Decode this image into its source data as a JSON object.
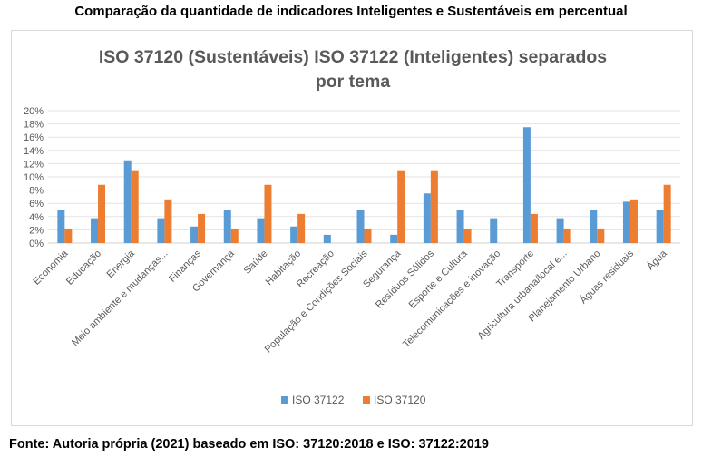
{
  "caption": "Comparação da quantidade de indicadores Inteligentes e Sustentáveis em percentual",
  "source": "Fonte: Autoria própria (2021) baseado em ISO: 37120:2018 e ISO: 37122:2019",
  "chart_data": {
    "type": "bar",
    "title_line1": "ISO 37120 (Sustentáveis) ISO 37122 (Inteligentes) separados",
    "title_line2": "por tema",
    "categories": [
      "Economia",
      "Educação",
      "Energia",
      "Meio ambiente e mudanças...",
      "Finanças",
      "Governança",
      "Saúde",
      "Habitação",
      "Recreação",
      "População e Condições Sociais",
      "Segurança",
      "Resíduos Sólidos",
      "Esporte e Cultura",
      "Telecomunicações e inovação",
      "Transporte",
      "Agricultura urbana/local e...",
      "Planejamento Urbano",
      "Águas residuais",
      "Água"
    ],
    "series": [
      {
        "name": "ISO 37122",
        "color": "#5b9bd5",
        "values": [
          5.0,
          3.75,
          12.5,
          3.75,
          2.5,
          5.0,
          3.75,
          2.5,
          1.25,
          5.0,
          1.25,
          7.5,
          5.0,
          3.75,
          17.5,
          3.75,
          5.0,
          6.25,
          5.0
        ]
      },
      {
        "name": "ISO 37120",
        "color": "#ed7d31",
        "values": [
          2.2,
          8.8,
          11.0,
          6.6,
          4.4,
          2.2,
          8.8,
          4.4,
          0,
          2.2,
          11.0,
          11.0,
          2.2,
          0,
          4.4,
          2.2,
          2.2,
          6.6,
          8.8
        ]
      }
    ],
    "y_ticks": [
      "0%",
      "2%",
      "4%",
      "6%",
      "8%",
      "10%",
      "12%",
      "14%",
      "16%",
      "18%",
      "20%"
    ],
    "ylim": [
      0,
      20
    ],
    "grid": true,
    "legend_position": "bottom"
  }
}
